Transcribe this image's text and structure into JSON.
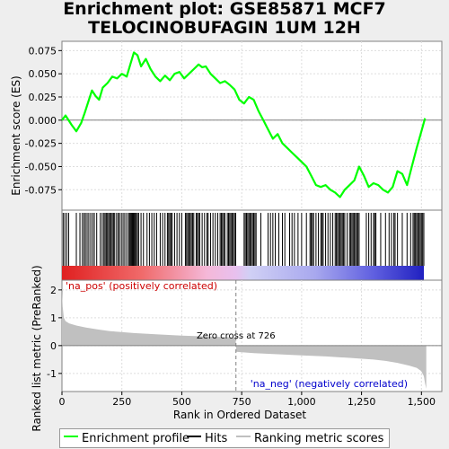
{
  "title_line1": "Enrichment plot: GSE85871 MCF7",
  "title_line2": "TELOCINOBUFAGIN 1UM 12H",
  "colors": {
    "enrichment_line": "#00ff00",
    "hits": "#000000",
    "ranking_fill": "#c0c0c0",
    "zero_line": "#808080",
    "pos_label": "#cc0000",
    "neg_label": "#0000cc"
  },
  "chart_data": [
    {
      "type": "line",
      "name": "enrichment-panel",
      "ylabel": "Enrichment score (ES)",
      "ylim": [
        -0.097,
        0.085
      ],
      "xlim": [
        0,
        1585
      ],
      "yticks": [
        0.075,
        0.05,
        0.025,
        0.0,
        -0.025,
        -0.05,
        -0.075
      ],
      "ytick_labels": [
        "0.075",
        "0.050",
        "0.025",
        "0.000",
        "-0.025",
        "-0.050",
        "-0.075"
      ],
      "grid": true,
      "series": [
        {
          "name": "Enrichment profile",
          "x": [
            0,
            15,
            40,
            60,
            80,
            95,
            110,
            125,
            140,
            155,
            170,
            190,
            210,
            230,
            250,
            270,
            285,
            300,
            315,
            330,
            350,
            370,
            390,
            410,
            430,
            450,
            470,
            490,
            510,
            530,
            550,
            570,
            585,
            600,
            620,
            640,
            660,
            680,
            700,
            720,
            740,
            760,
            780,
            800,
            820,
            840,
            860,
            880,
            900,
            920,
            940,
            960,
            980,
            1000,
            1020,
            1040,
            1060,
            1080,
            1100,
            1120,
            1140,
            1160,
            1180,
            1200,
            1220,
            1240,
            1260,
            1280,
            1300,
            1320,
            1340,
            1360,
            1380,
            1400,
            1420,
            1440,
            1460,
            1480,
            1500,
            1515
          ],
          "y": [
            0.0,
            0.005,
            -0.005,
            -0.012,
            -0.003,
            0.008,
            0.02,
            0.032,
            0.026,
            0.022,
            0.035,
            0.04,
            0.047,
            0.045,
            0.05,
            0.047,
            0.06,
            0.073,
            0.07,
            0.058,
            0.066,
            0.055,
            0.047,
            0.042,
            0.048,
            0.043,
            0.05,
            0.052,
            0.045,
            0.05,
            0.055,
            0.06,
            0.057,
            0.058,
            0.05,
            0.045,
            0.04,
            0.042,
            0.038,
            0.033,
            0.022,
            0.018,
            0.025,
            0.022,
            0.01,
            0.0,
            -0.01,
            -0.02,
            -0.015,
            -0.025,
            -0.03,
            -0.035,
            -0.04,
            -0.045,
            -0.05,
            -0.06,
            -0.07,
            -0.072,
            -0.07,
            -0.075,
            -0.078,
            -0.083,
            -0.075,
            -0.07,
            -0.065,
            -0.05,
            -0.06,
            -0.072,
            -0.068,
            -0.07,
            -0.075,
            -0.078,
            -0.072,
            -0.055,
            -0.058,
            -0.07,
            -0.05,
            -0.03,
            -0.012,
            0.002
          ]
        }
      ]
    },
    {
      "type": "bar",
      "name": "hits-panel",
      "series_name": "Hits",
      "xlim": [
        0,
        1585
      ],
      "hit_positions": [
        5,
        12,
        20,
        28,
        60,
        75,
        85,
        92,
        98,
        105,
        112,
        120,
        128,
        135,
        145,
        160,
        168,
        175,
        180,
        185,
        190,
        195,
        200,
        205,
        210,
        215,
        220,
        228,
        235,
        240,
        248,
        255,
        262,
        270,
        278,
        282,
        286,
        290,
        294,
        298,
        302,
        306,
        310,
        315,
        320,
        330,
        340,
        355,
        365,
        375,
        385,
        395,
        410,
        420,
        430,
        440,
        445,
        450,
        455,
        460,
        470,
        480,
        490,
        500,
        515,
        520,
        525,
        530,
        535,
        540,
        545,
        550,
        560,
        565,
        570,
        575,
        585,
        595,
        605,
        610,
        620,
        630,
        640,
        650,
        660,
        665,
        670,
        675,
        680,
        690,
        695,
        700,
        705,
        710,
        715,
        720,
        725,
        760,
        765,
        770,
        775,
        780,
        785,
        790,
        795,
        800,
        805,
        810,
        830,
        860,
        870,
        880,
        890,
        905,
        920,
        930,
        950,
        960,
        970,
        985,
        1000,
        1020,
        1035,
        1040,
        1045,
        1050,
        1060,
        1070,
        1080,
        1085,
        1090,
        1100,
        1110,
        1120,
        1130,
        1140,
        1145,
        1150,
        1155,
        1160,
        1165,
        1170,
        1175,
        1180,
        1190,
        1200,
        1205,
        1210,
        1215,
        1220,
        1225,
        1230,
        1235,
        1240,
        1270,
        1280,
        1290,
        1300,
        1305,
        1310,
        1330,
        1350,
        1365,
        1375,
        1385,
        1390,
        1400,
        1420,
        1440,
        1455,
        1465,
        1470,
        1475,
        1480,
        1485,
        1490,
        1495,
        1500,
        1505,
        1510
      ]
    },
    {
      "type": "area",
      "name": "ranking-panel",
      "series_name": "Ranking metric scores",
      "xlabel": "Rank in Ordered Dataset",
      "ylabel": "Ranked list metric (PreRanked)",
      "ylim": [
        -1.65,
        2.35
      ],
      "xlim": [
        0,
        1585
      ],
      "yticks": [
        2,
        1,
        0,
        -1
      ],
      "ytick_labels": [
        "2",
        "1",
        "0",
        "-1"
      ],
      "xticks": [
        0,
        250,
        500,
        750,
        1000,
        1250,
        1500
      ],
      "xtick_labels": [
        "0",
        "250",
        "500",
        "750",
        "1,000",
        "1,250",
        "1,500"
      ],
      "x": [
        0,
        3,
        8,
        15,
        30,
        60,
        100,
        150,
        200,
        300,
        400,
        500,
        600,
        700,
        725,
        727,
        750,
        800,
        900,
        1000,
        1100,
        1200,
        1300,
        1350,
        1400,
        1450,
        1480,
        1500,
        1510,
        1515,
        1520
      ],
      "y": [
        1.95,
        1.4,
        1.0,
        0.88,
        0.8,
        0.72,
        0.65,
        0.58,
        0.52,
        0.45,
        0.4,
        0.36,
        0.33,
        0.3,
        0.28,
        -0.22,
        -0.24,
        -0.27,
        -0.31,
        -0.35,
        -0.39,
        -0.44,
        -0.5,
        -0.55,
        -0.62,
        -0.72,
        -0.8,
        -0.92,
        -1.1,
        -1.35,
        -1.55
      ],
      "zero_cross_rank": 726,
      "zero_cross_label": "Zero cross at 726",
      "pos_label": "'na_pos' (positively correlated)",
      "neg_label": "'na_neg' (negatively correlated)"
    }
  ],
  "legend": {
    "items": [
      {
        "label": "Enrichment profile"
      },
      {
        "label": "Hits"
      },
      {
        "label": "Ranking metric scores"
      }
    ]
  }
}
